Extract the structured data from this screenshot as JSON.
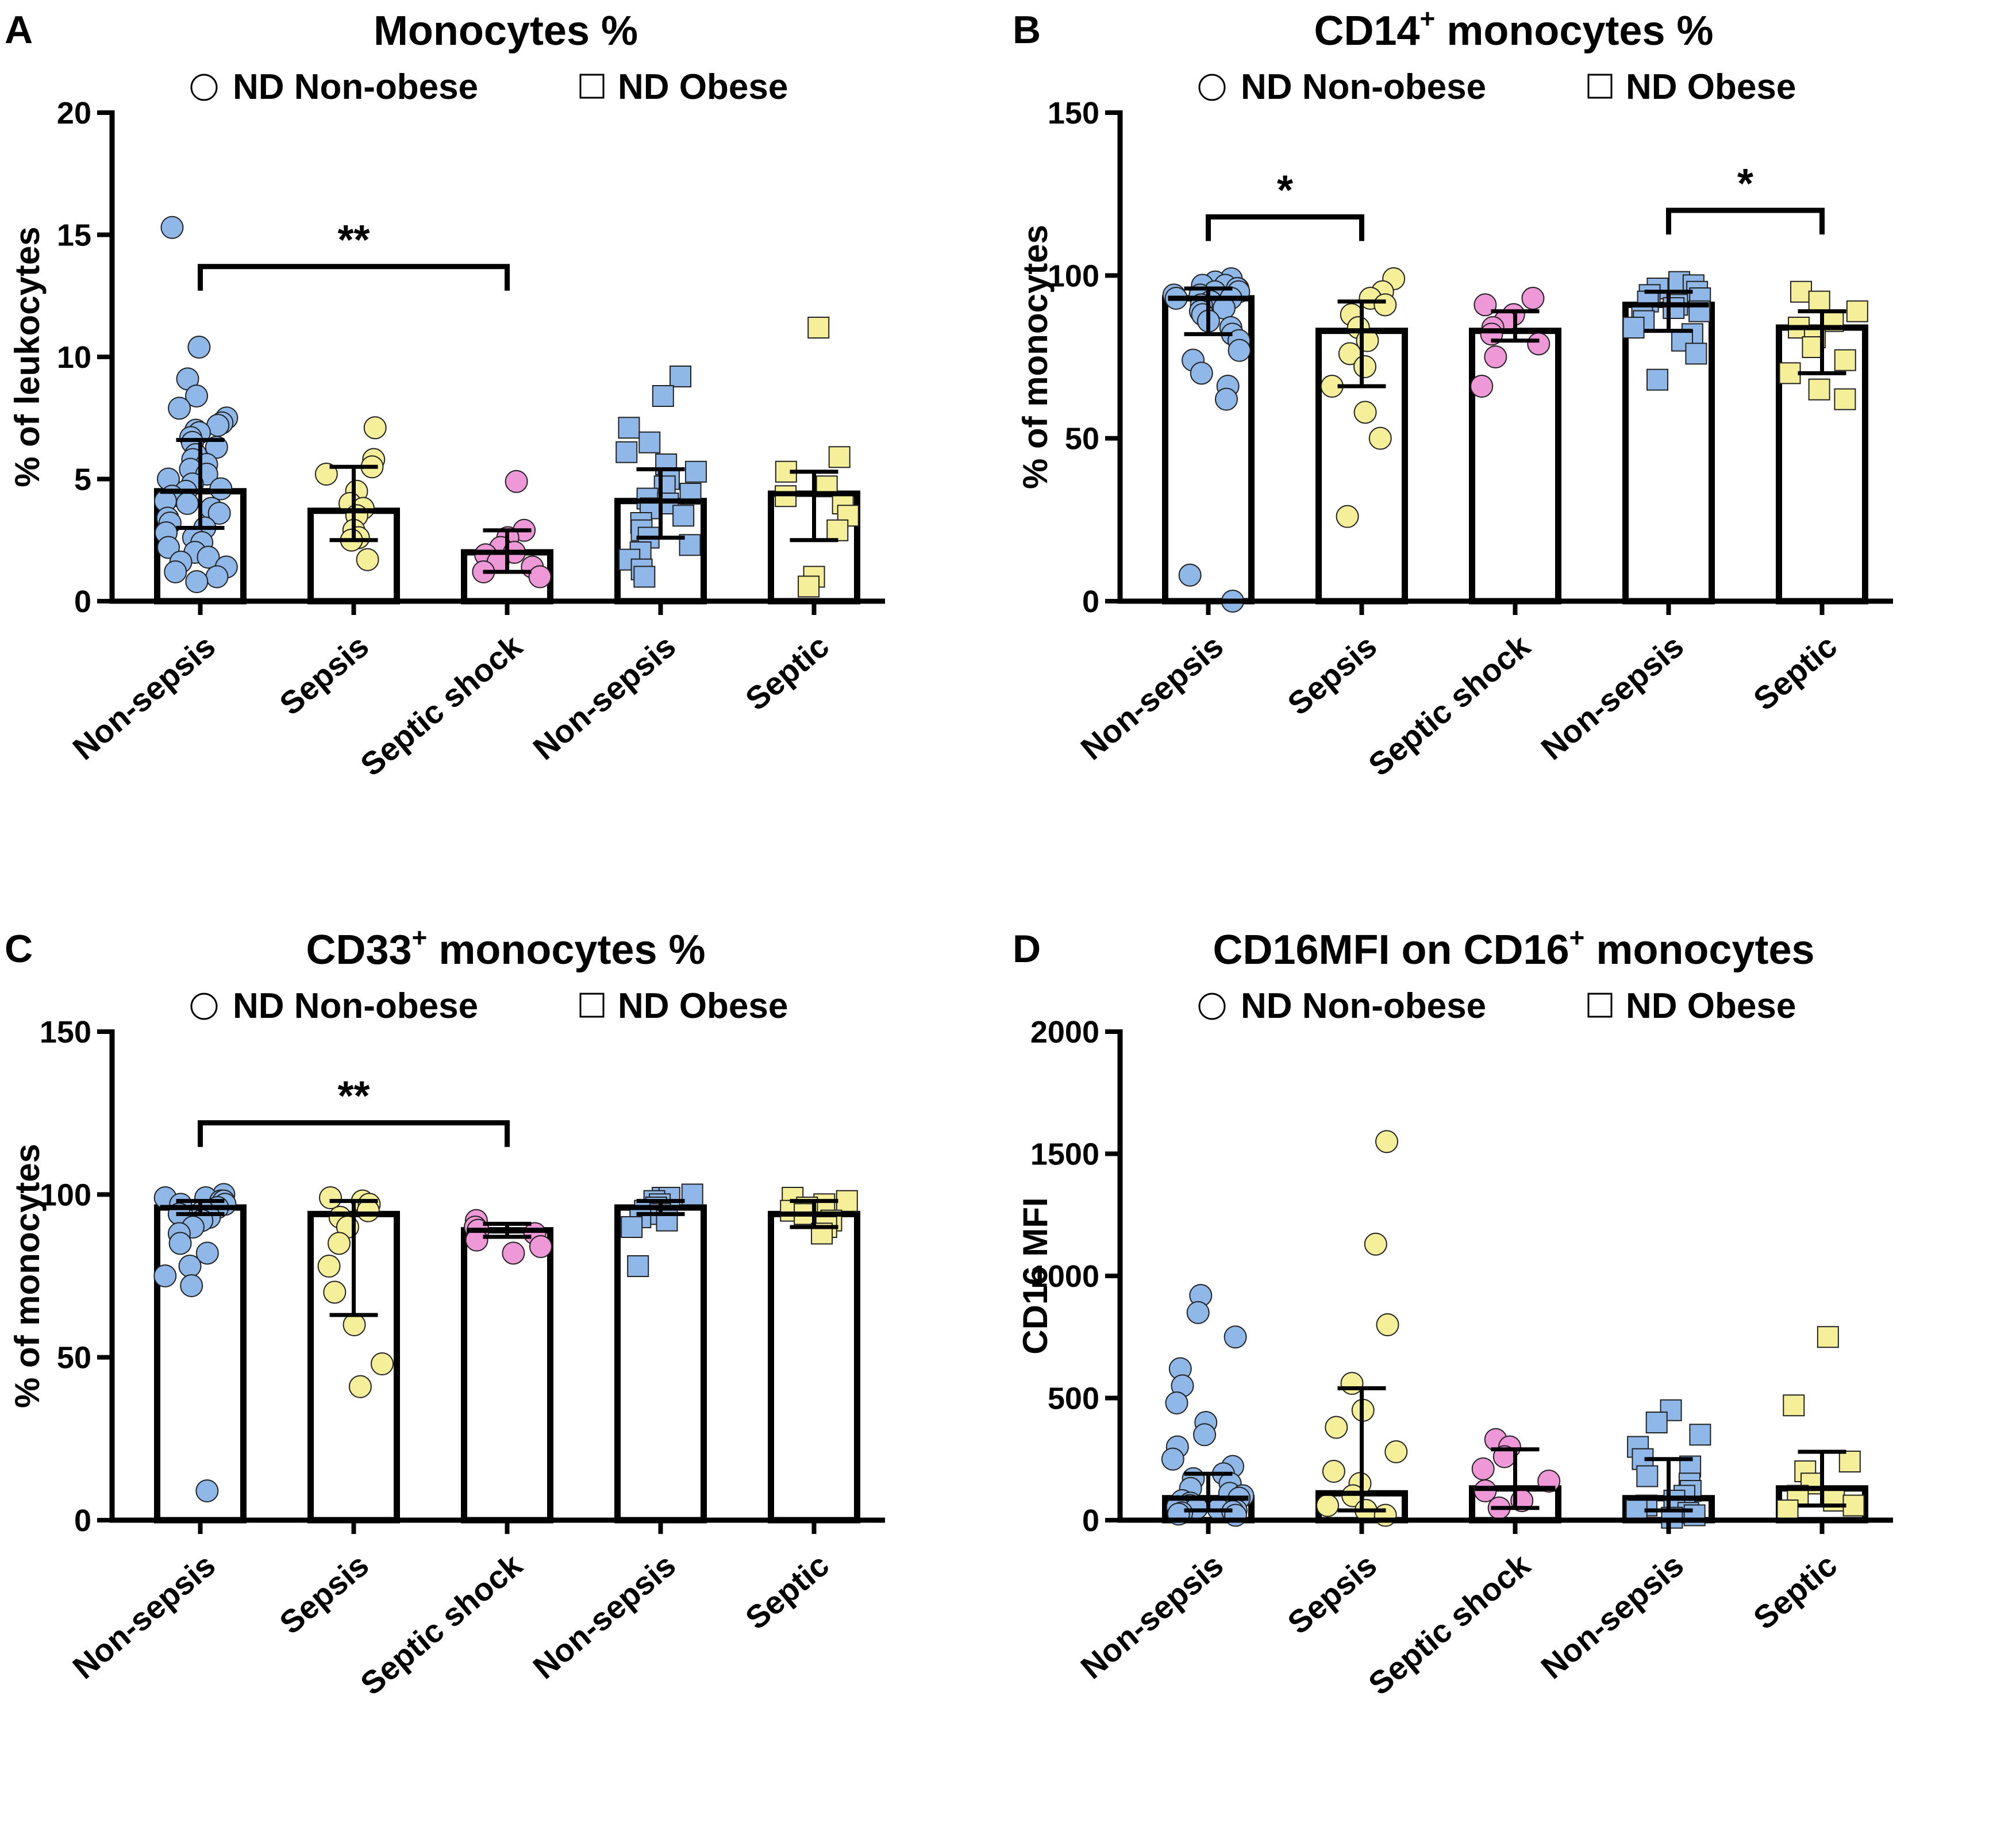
{
  "colors": {
    "non_sepsis": "#8fb8e8",
    "sepsis": "#f6ef9a",
    "septic_shock": "#ee98d8",
    "marker_stroke": "#222222",
    "bar_fill": "#ffffff",
    "axis": "#000000"
  },
  "legend_shapes": {
    "non_obese": "circle-icon",
    "obese": "square-icon"
  },
  "chart_data": [
    {
      "letter": "A",
      "type": "bar",
      "title": {
        "main": "Monocytes %",
        "sup": "",
        "suffix": ""
      },
      "legend": [
        "ND Non-obese",
        "ND Obese"
      ],
      "ylabel": "% of leukocytes",
      "ylim": [
        0,
        20
      ],
      "yticks": [
        0,
        5,
        10,
        15,
        20
      ],
      "yticklabels": [
        "0",
        "5",
        "10",
        "15",
        "20"
      ],
      "categories": [
        "Non-sepsis",
        "Sepsis",
        "Septic shock",
        "Non-sepsis",
        "Septic"
      ],
      "groups": [
        "non_sepsis",
        "sepsis",
        "septic_shock",
        "non_sepsis",
        "sepsis"
      ],
      "markers": [
        "circle",
        "circle",
        "circle",
        "square",
        "square"
      ],
      "values": [
        4.5,
        3.7,
        2.0,
        4.1,
        4.4
      ],
      "err_low": [
        3.0,
        2.5,
        1.2,
        2.6,
        2.5
      ],
      "err_high": [
        6.6,
        5.5,
        2.9,
        5.4,
        5.3
      ],
      "points": [
        [
          15.3,
          10.4,
          9.1,
          8.4,
          7.9,
          7.5,
          7.3,
          7.2,
          7.0,
          6.9,
          6.7,
          6.5,
          6.3,
          6.0,
          5.8,
          5.6,
          5.4,
          5.2,
          5.0,
          4.8,
          4.6,
          4.5,
          4.3,
          4.1,
          4.0,
          3.8,
          3.6,
          3.4,
          3.2,
          3.0,
          2.8,
          2.6,
          2.4,
          2.2,
          2.0,
          1.8,
          1.6,
          1.4,
          1.2,
          1.0,
          0.8
        ],
        [
          7.1,
          5.8,
          5.5,
          5.2,
          4.5,
          4.0,
          3.8,
          3.5,
          2.9,
          2.6,
          2.5,
          1.7
        ],
        [
          4.9,
          2.9,
          2.6,
          2.2,
          2.0,
          1.9,
          1.6,
          1.4,
          1.2,
          1.0
        ],
        [
          9.2,
          8.4,
          7.1,
          6.5,
          6.1,
          5.6,
          5.3,
          5.0,
          4.7,
          4.4,
          4.2,
          4.0,
          3.8,
          3.5,
          3.2,
          2.9,
          2.6,
          2.3,
          2.0,
          1.7,
          1.3,
          1.0
        ],
        [
          11.2,
          5.9,
          5.3,
          4.7,
          4.3,
          4.0,
          3.5,
          2.9,
          1.0,
          0.6
        ]
      ],
      "significance": [
        {
          "from": 0,
          "to": 2,
          "label": "**",
          "y": 13.7
        }
      ]
    },
    {
      "letter": "B",
      "type": "bar",
      "title": {
        "main": "CD14",
        "sup": "+",
        "suffix": " monocytes %"
      },
      "legend": [
        "ND Non-obese",
        "ND Obese"
      ],
      "ylabel": "% of monocytes",
      "ylim": [
        0,
        150
      ],
      "yticks": [
        0,
        50,
        100,
        150
      ],
      "yticklabels": [
        "0",
        "50",
        "100",
        "150"
      ],
      "categories": [
        "Non-sepsis",
        "Sepsis",
        "Septic shock",
        "Non-sepsis",
        "Septic"
      ],
      "groups": [
        "non_sepsis",
        "sepsis",
        "septic_shock",
        "non_sepsis",
        "sepsis"
      ],
      "markers": [
        "circle",
        "circle",
        "circle",
        "square",
        "square"
      ],
      "values": [
        93,
        83,
        83,
        91,
        84
      ],
      "err_low": [
        82,
        66,
        80,
        83,
        70
      ],
      "err_high": [
        96,
        92,
        89,
        95,
        89
      ],
      "points": [
        [
          99,
          98,
          97,
          97,
          96,
          96,
          95,
          95,
          94,
          94,
          93,
          93,
          92,
          91,
          90,
          89,
          88,
          86,
          84,
          82,
          80,
          77,
          74,
          70,
          66,
          62,
          8,
          0
        ],
        [
          99,
          95,
          93,
          91,
          88,
          84,
          80,
          76,
          72,
          66,
          58,
          50,
          26
        ],
        [
          93,
          91,
          88,
          86,
          84,
          82,
          79,
          75,
          66
        ],
        [
          98,
          97,
          96,
          95,
          94,
          93,
          92,
          91,
          90,
          89,
          88,
          86,
          84,
          82,
          80,
          76,
          68
        ],
        [
          95,
          92,
          89,
          86,
          84,
          81,
          78,
          74,
          70,
          65,
          62
        ]
      ],
      "significance": [
        {
          "from": 0,
          "to": 1,
          "label": "*",
          "y": 118
        },
        {
          "from": 3,
          "to": 4,
          "label": "*",
          "y": 120
        }
      ]
    },
    {
      "letter": "C",
      "type": "bar",
      "title": {
        "main": "CD33",
        "sup": "+",
        "suffix": " monocytes %"
      },
      "legend": [
        "ND Non-obese",
        "ND Obese"
      ],
      "ylabel": "% of monocytes",
      "ylim": [
        0,
        150
      ],
      "yticks": [
        0,
        50,
        100,
        150
      ],
      "yticklabels": [
        "0",
        "50",
        "100",
        "150"
      ],
      "categories": [
        "Non-sepsis",
        "Sepsis",
        "Septic shock",
        "Non-sepsis",
        "Septic"
      ],
      "groups": [
        "non_sepsis",
        "sepsis",
        "septic_shock",
        "non_sepsis",
        "sepsis"
      ],
      "markers": [
        "circle",
        "circle",
        "circle",
        "square",
        "square"
      ],
      "values": [
        96,
        94,
        89,
        96,
        94
      ],
      "err_low": [
        94,
        63,
        87,
        94,
        90
      ],
      "err_high": [
        98,
        98,
        91,
        98,
        98
      ],
      "points": [
        [
          100,
          99,
          99,
          98,
          98,
          97,
          97,
          96,
          95,
          94,
          93,
          92,
          90,
          88,
          85,
          82,
          78,
          75,
          72,
          9
        ],
        [
          99,
          98,
          97,
          95,
          93,
          90,
          85,
          78,
          70,
          60,
          48,
          41
        ],
        [
          92,
          90,
          89,
          88,
          86,
          84,
          82
        ],
        [
          100,
          99,
          99,
          98,
          97,
          96,
          95,
          94,
          93,
          92,
          90,
          78
        ],
        [
          99,
          98,
          97,
          96,
          95,
          94,
          92,
          90,
          88
        ]
      ],
      "significance": [
        {
          "from": 0,
          "to": 2,
          "label": "**",
          "y": 122
        }
      ]
    },
    {
      "letter": "D",
      "type": "bar",
      "title": {
        "main": "CD16MFI on CD16",
        "sup": "+",
        "suffix": " monocytes"
      },
      "legend": [
        "ND Non-obese",
        "ND Obese"
      ],
      "ylabel": "CD16 MFI",
      "ylim": [
        0,
        2000
      ],
      "yticks": [
        0,
        500,
        1000,
        1500,
        2000
      ],
      "yticklabels": [
        "0",
        "500",
        "1000",
        "1500",
        "2000"
      ],
      "categories": [
        "Non-sepsis",
        "Sepsis",
        "Septic shock",
        "Non-sepsis",
        "Septic"
      ],
      "groups": [
        "non_sepsis",
        "sepsis",
        "septic_shock",
        "non_sepsis",
        "sepsis"
      ],
      "markers": [
        "circle",
        "circle",
        "circle",
        "square",
        "square"
      ],
      "values": [
        90,
        110,
        130,
        90,
        130
      ],
      "err_low": [
        40,
        40,
        50,
        40,
        60
      ],
      "err_high": [
        190,
        540,
        290,
        250,
        280
      ],
      "points": [
        [
          920,
          850,
          750,
          620,
          550,
          480,
          400,
          350,
          300,
          250,
          220,
          190,
          170,
          150,
          130,
          110,
          100,
          90,
          80,
          70,
          60,
          55,
          50,
          45,
          40,
          35,
          30,
          25,
          20
        ],
        [
          1550,
          1130,
          800,
          560,
          450,
          380,
          280,
          200,
          150,
          100,
          60,
          40,
          20
        ],
        [
          330,
          300,
          260,
          210,
          160,
          120,
          80,
          50
        ],
        [
          450,
          400,
          350,
          300,
          250,
          220,
          180,
          150,
          120,
          100,
          80,
          60,
          40,
          30,
          20,
          10
        ],
        [
          750,
          470,
          240,
          200,
          150,
          100,
          80,
          60,
          40
        ]
      ],
      "significance": []
    }
  ]
}
